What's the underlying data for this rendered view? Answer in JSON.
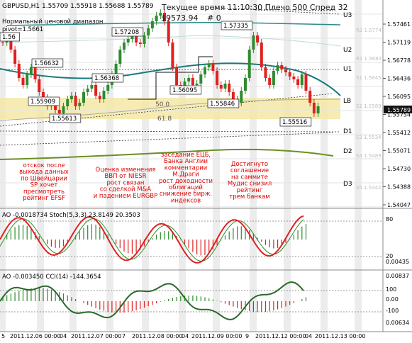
{
  "window": {
    "symbol_line": "GBPUSD,H1  1.55709 1.55918 1.55688 1.55789",
    "range_label": "Нормальный ценовой диапазон",
    "pivot_label": "pivot=1.5661",
    "overlay_header": "Текущее время 11:10:30 Плечо 500 Спред 32",
    "overlay_balance": "$9573.94",
    "overlay_zero": "# 0"
  },
  "price_axis": {
    "ticks": [
      "1.57461",
      "1.57119",
      "1.56778",
      "1.56436",
      "1.56095",
      "1.55754",
      "1.55412",
      "1.55071",
      "1.54730",
      "1.54388",
      "1.54047"
    ],
    "current_price": "1.55789"
  },
  "level_labels": [
    {
      "name": "U3",
      "text": "U3"
    },
    {
      "name": "U2",
      "text": "U2"
    },
    {
      "name": "U1",
      "text": "U1"
    },
    {
      "name": "LB",
      "text": "LB"
    },
    {
      "name": "D1",
      "text": "D1"
    },
    {
      "name": "D2",
      "text": "D2"
    },
    {
      "name": "D3",
      "text": "D3"
    }
  ],
  "pivot_faint_labels": [
    "R2 1.5774",
    "R1 1.5683",
    "S1 1.5645",
    "S2 1.5589",
    "S3 1.5534",
    "S4 1.5489",
    "S5 1.5442"
  ],
  "chart_labels": {
    "fib_50": "50.0",
    "fib_618": "61.8"
  },
  "price_tags": [
    "1.56",
    "1.57208",
    "1.57335",
    "1.56632",
    "1.56368",
    "1.56095",
    "1.55909",
    "1.55846",
    "1.55613",
    "1.55516"
  ],
  "annotations": [
    "отскок после\nвыхода данных\nпо Швейцарии\nSP хочет\nпресмотреть\nрейтинг EFSF",
    "Оценка изменения\nВВП от NIESR\nрост связан\nсо сделкой M&A\nи падением EURGBP",
    "заседание ЕЦБ,\nБанка Англии\nкомментарии\nМ.Драги\nрост доходности\nоблигаций\nснижение бирж.\nиндексов",
    "Достигнуто\nсоглашение\nна саммите\nМудис снизил\nрейтинг\nтрем банкам"
  ],
  "indicator1": {
    "header": "AO -0.0018734  Stoch(5,3,3) 23.8149 20.3503",
    "ticks": [
      "80",
      "20",
      "0.00435"
    ]
  },
  "indicator2": {
    "header": "AO -0.003450  CCI(14) -144.3654",
    "ticks": [
      "0.00837",
      "100",
      "0.00",
      "-100",
      "0.00634"
    ]
  },
  "time_axis": {
    "labels": [
      "5",
      "2011.12.06 00:00",
      "04",
      "2011.12.07 00:00",
      "7",
      "2011.12.08 00:00",
      "04",
      "2011.12.09 00:00",
      "9",
      "2011.12.12 00:00",
      "04",
      "2011.12.13 00:00"
    ]
  },
  "colors": {
    "candle_up": "#2e8b2e",
    "candle_down": "#e02020",
    "teal_ma": "#1a7a7a",
    "olive_ma": "#6b8e23",
    "band": "#f5e9a6",
    "stoch_main": "#e02020",
    "stoch_signal": "#2e8b2e"
  }
}
